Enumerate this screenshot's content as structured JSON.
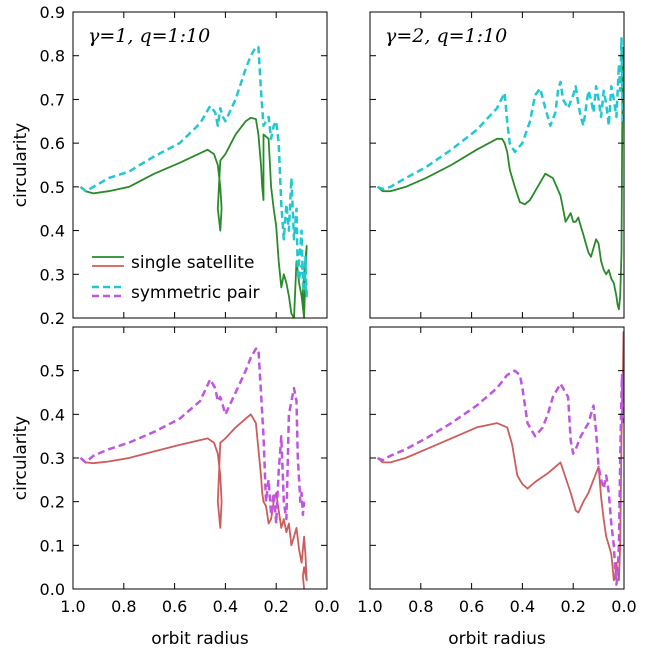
{
  "chart_data": [
    {
      "type": "line",
      "panel_label": "γ=1,   q=1:10",
      "xlabel": "",
      "ylabel": "circularity",
      "xlim": [
        1.0,
        0.0
      ],
      "ylim": [
        0.2,
        0.9
      ],
      "xticks": [
        1.0,
        0.8,
        0.6,
        0.4,
        0.2,
        0.0
      ],
      "yticks": [
        "0.2",
        "0.3",
        "0.4",
        "0.5",
        "0.6",
        "0.7",
        "0.8",
        "0.9"
      ],
      "series": [
        {
          "name": "single satellite",
          "color": "#2a8a2a",
          "dash": "solid",
          "x": [
            0.97,
            0.95,
            0.92,
            0.86,
            0.78,
            0.68,
            0.58,
            0.47,
            0.445,
            0.43,
            0.42,
            0.415,
            0.42,
            0.43,
            0.42,
            0.4,
            0.36,
            0.32,
            0.3,
            0.28,
            0.27,
            0.26,
            0.255,
            0.25,
            0.25,
            0.23,
            0.22,
            0.21,
            0.2,
            0.19,
            0.18,
            0.17,
            0.16,
            0.15,
            0.14,
            0.13,
            0.12,
            0.11,
            0.1,
            0.09,
            0.085,
            0.08,
            0.09,
            0.095,
            0.09
          ],
          "y": [
            0.5,
            0.49,
            0.485,
            0.49,
            0.5,
            0.53,
            0.555,
            0.585,
            0.575,
            0.55,
            0.5,
            0.45,
            0.4,
            0.45,
            0.56,
            0.575,
            0.62,
            0.65,
            0.658,
            0.655,
            0.62,
            0.55,
            0.5,
            0.47,
            0.62,
            0.61,
            0.5,
            0.45,
            0.41,
            0.33,
            0.27,
            0.3,
            0.28,
            0.25,
            0.21,
            0.2,
            0.33,
            0.28,
            0.25,
            0.2,
            0.3,
            0.365,
            0.3,
            0.26,
            0.2
          ]
        },
        {
          "name": "symmetric pair",
          "color": "#22c8cf",
          "dash": "dashed",
          "x": [
            0.97,
            0.95,
            0.92,
            0.86,
            0.78,
            0.68,
            0.58,
            0.5,
            0.46,
            0.44,
            0.43,
            0.42,
            0.41,
            0.4,
            0.36,
            0.32,
            0.3,
            0.28,
            0.27,
            0.26,
            0.25,
            0.24,
            0.23,
            0.22,
            0.21,
            0.2,
            0.19,
            0.18,
            0.17,
            0.16,
            0.15,
            0.14,
            0.13,
            0.12,
            0.115,
            0.11,
            0.105,
            0.1,
            0.095,
            0.09,
            0.085,
            0.08,
            0.09,
            0.1,
            0.11
          ],
          "y": [
            0.5,
            0.49,
            0.5,
            0.52,
            0.535,
            0.57,
            0.6,
            0.645,
            0.685,
            0.67,
            0.64,
            0.68,
            0.66,
            0.65,
            0.7,
            0.77,
            0.8,
            0.82,
            0.82,
            0.72,
            0.64,
            0.65,
            0.66,
            0.61,
            0.64,
            0.65,
            0.6,
            0.46,
            0.38,
            0.46,
            0.4,
            0.52,
            0.38,
            0.45,
            0.3,
            0.33,
            0.36,
            0.4,
            0.28,
            0.26,
            0.34,
            0.25,
            0.3,
            0.32,
            0.29
          ]
        }
      ]
    },
    {
      "type": "line",
      "panel_label": "γ=2,   q=1:10",
      "xlabel": "",
      "ylabel": "",
      "xlim": [
        1.0,
        0.0
      ],
      "ylim": [
        0.2,
        0.9
      ],
      "xticks": [
        1.0,
        0.8,
        0.6,
        0.4,
        0.2,
        0.0
      ],
      "yticks": [],
      "series": [
        {
          "name": "single satellite",
          "color": "#2a8a2a",
          "dash": "solid",
          "x": [
            0.97,
            0.95,
            0.92,
            0.86,
            0.78,
            0.68,
            0.58,
            0.5,
            0.48,
            0.47,
            0.46,
            0.45,
            0.43,
            0.41,
            0.39,
            0.37,
            0.34,
            0.31,
            0.28,
            0.25,
            0.23,
            0.21,
            0.2,
            0.19,
            0.18,
            0.17,
            0.16,
            0.15,
            0.14,
            0.13,
            0.12,
            0.11,
            0.1,
            0.09,
            0.08,
            0.07,
            0.06,
            0.05,
            0.04,
            0.03,
            0.025,
            0.02,
            0.015,
            0.01,
            0.005
          ],
          "y": [
            0.5,
            0.49,
            0.49,
            0.5,
            0.52,
            0.55,
            0.585,
            0.61,
            0.61,
            0.6,
            0.58,
            0.54,
            0.5,
            0.465,
            0.46,
            0.47,
            0.5,
            0.53,
            0.52,
            0.48,
            0.42,
            0.44,
            0.42,
            0.42,
            0.43,
            0.41,
            0.39,
            0.37,
            0.35,
            0.34,
            0.36,
            0.38,
            0.37,
            0.33,
            0.31,
            0.3,
            0.31,
            0.29,
            0.28,
            0.25,
            0.23,
            0.22,
            0.25,
            0.35,
            0.82
          ]
        },
        {
          "name": "symmetric pair",
          "color": "#22c8cf",
          "dash": "dashed",
          "x": [
            0.97,
            0.95,
            0.92,
            0.86,
            0.78,
            0.68,
            0.58,
            0.5,
            0.47,
            0.46,
            0.45,
            0.43,
            0.4,
            0.37,
            0.35,
            0.33,
            0.31,
            0.29,
            0.27,
            0.26,
            0.25,
            0.24,
            0.22,
            0.2,
            0.19,
            0.18,
            0.17,
            0.16,
            0.15,
            0.14,
            0.13,
            0.12,
            0.11,
            0.1,
            0.09,
            0.08,
            0.07,
            0.06,
            0.05,
            0.04,
            0.03,
            0.02,
            0.015,
            0.01,
            0.005
          ],
          "y": [
            0.5,
            0.495,
            0.5,
            0.52,
            0.545,
            0.585,
            0.63,
            0.68,
            0.715,
            0.65,
            0.6,
            0.58,
            0.6,
            0.65,
            0.71,
            0.725,
            0.68,
            0.64,
            0.67,
            0.72,
            0.74,
            0.7,
            0.68,
            0.71,
            0.73,
            0.69,
            0.66,
            0.64,
            0.68,
            0.72,
            0.7,
            0.67,
            0.73,
            0.7,
            0.66,
            0.72,
            0.69,
            0.64,
            0.73,
            0.7,
            0.66,
            0.78,
            0.72,
            0.84,
            0.65
          ]
        }
      ]
    },
    {
      "type": "line",
      "panel_label": "",
      "xlabel": "orbit radius",
      "ylabel": "circularity",
      "xlim": [
        1.0,
        0.0
      ],
      "ylim": [
        0.0,
        0.6
      ],
      "xticks": [
        "1.0",
        "0.8",
        "0.6",
        "0.4",
        "0.2",
        "0.0"
      ],
      "yticks": [
        "0.0",
        "0.1",
        "0.2",
        "0.3",
        "0.4",
        "0.5"
      ],
      "series": [
        {
          "name": "single satellite",
          "color": "#cd5c5c",
          "dash": "solid",
          "x": [
            0.97,
            0.95,
            0.92,
            0.86,
            0.78,
            0.68,
            0.58,
            0.47,
            0.445,
            0.43,
            0.42,
            0.415,
            0.42,
            0.43,
            0.42,
            0.4,
            0.36,
            0.32,
            0.3,
            0.28,
            0.27,
            0.26,
            0.255,
            0.25,
            0.24,
            0.23,
            0.22,
            0.21,
            0.2,
            0.19,
            0.18,
            0.17,
            0.16,
            0.15,
            0.14,
            0.13,
            0.12,
            0.11,
            0.1,
            0.09,
            0.085,
            0.08,
            0.09,
            0.095,
            0.09
          ],
          "y": [
            0.3,
            0.29,
            0.288,
            0.292,
            0.3,
            0.315,
            0.33,
            0.345,
            0.335,
            0.31,
            0.26,
            0.2,
            0.14,
            0.2,
            0.335,
            0.345,
            0.37,
            0.39,
            0.4,
            0.38,
            0.32,
            0.26,
            0.22,
            0.2,
            0.19,
            0.15,
            0.16,
            0.2,
            0.22,
            0.18,
            0.14,
            0.16,
            0.13,
            0.15,
            0.1,
            0.12,
            0.14,
            0.09,
            0.06,
            0.12,
            0.08,
            0.02,
            0.05,
            0.03,
            0.0
          ]
        },
        {
          "name": "symmetric pair",
          "color": "#bf55e0",
          "dash": "dashed",
          "x": [
            0.97,
            0.95,
            0.92,
            0.86,
            0.78,
            0.68,
            0.58,
            0.5,
            0.46,
            0.44,
            0.43,
            0.42,
            0.41,
            0.4,
            0.36,
            0.32,
            0.3,
            0.28,
            0.27,
            0.26,
            0.25,
            0.24,
            0.23,
            0.22,
            0.21,
            0.2,
            0.19,
            0.18,
            0.17,
            0.16,
            0.15,
            0.14,
            0.13,
            0.12,
            0.115,
            0.11,
            0.105,
            0.1,
            0.095,
            0.09
          ],
          "y": [
            0.3,
            0.29,
            0.305,
            0.32,
            0.335,
            0.36,
            0.39,
            0.43,
            0.48,
            0.46,
            0.43,
            0.44,
            0.42,
            0.4,
            0.45,
            0.5,
            0.53,
            0.55,
            0.55,
            0.45,
            0.35,
            0.2,
            0.25,
            0.17,
            0.22,
            0.15,
            0.27,
            0.35,
            0.2,
            0.16,
            0.4,
            0.43,
            0.46,
            0.43,
            0.3,
            0.25,
            0.2,
            0.22,
            0.17,
            0.2
          ]
        }
      ]
    },
    {
      "type": "line",
      "panel_label": "",
      "xlabel": "orbit radius",
      "ylabel": "",
      "xlim": [
        1.0,
        0.0
      ],
      "ylim": [
        0.0,
        0.6
      ],
      "xticks": [
        "1.0",
        "0.8",
        "0.6",
        "0.4",
        "0.2",
        "0.0"
      ],
      "yticks": [],
      "series": [
        {
          "name": "single satellite",
          "color": "#cd5c5c",
          "dash": "solid",
          "x": [
            0.97,
            0.95,
            0.92,
            0.86,
            0.78,
            0.68,
            0.58,
            0.5,
            0.46,
            0.44,
            0.42,
            0.4,
            0.38,
            0.35,
            0.3,
            0.25,
            0.21,
            0.19,
            0.18,
            0.16,
            0.14,
            0.12,
            0.1,
            0.09,
            0.08,
            0.07,
            0.06,
            0.05,
            0.045,
            0.04,
            0.035,
            0.03,
            0.025,
            0.02,
            0.015,
            0.01,
            0.005,
            0.002
          ],
          "y": [
            0.3,
            0.29,
            0.29,
            0.3,
            0.32,
            0.345,
            0.37,
            0.38,
            0.37,
            0.33,
            0.26,
            0.24,
            0.23,
            0.245,
            0.265,
            0.29,
            0.22,
            0.18,
            0.175,
            0.2,
            0.22,
            0.25,
            0.28,
            0.21,
            0.16,
            0.12,
            0.1,
            0.08,
            0.05,
            0.02,
            0.03,
            0.06,
            0.04,
            0.02,
            0.1,
            0.35,
            0.45,
            0.59
          ]
        },
        {
          "name": "symmetric pair",
          "color": "#bf55e0",
          "dash": "dashed",
          "x": [
            0.97,
            0.95,
            0.92,
            0.86,
            0.78,
            0.68,
            0.58,
            0.5,
            0.46,
            0.43,
            0.41,
            0.4,
            0.38,
            0.35,
            0.32,
            0.3,
            0.28,
            0.25,
            0.22,
            0.21,
            0.2,
            0.19,
            0.17,
            0.14,
            0.12,
            0.11,
            0.1,
            0.09,
            0.08,
            0.07,
            0.06,
            0.05,
            0.04,
            0.035,
            0.03,
            0.025,
            0.02,
            0.015,
            0.01,
            0.008,
            0.005
          ],
          "y": [
            0.3,
            0.295,
            0.305,
            0.32,
            0.345,
            0.38,
            0.42,
            0.46,
            0.49,
            0.5,
            0.49,
            0.46,
            0.38,
            0.35,
            0.37,
            0.4,
            0.44,
            0.47,
            0.44,
            0.34,
            0.31,
            0.32,
            0.35,
            0.38,
            0.42,
            0.36,
            0.28,
            0.25,
            0.23,
            0.26,
            0.22,
            0.15,
            0.1,
            0.05,
            0.01,
            0.03,
            0.1,
            0.3,
            0.45,
            0.49,
            0.38
          ]
        }
      ]
    }
  ],
  "legend": {
    "items": [
      {
        "label": "single satellite",
        "top_color": "#2a8a2a",
        "bottom_color": "#cd5c5c",
        "dash": "solid"
      },
      {
        "label": "symmetric pair",
        "top_color": "#22c8cf",
        "bottom_color": "#bf55e0",
        "dash": "dashed"
      }
    ]
  }
}
